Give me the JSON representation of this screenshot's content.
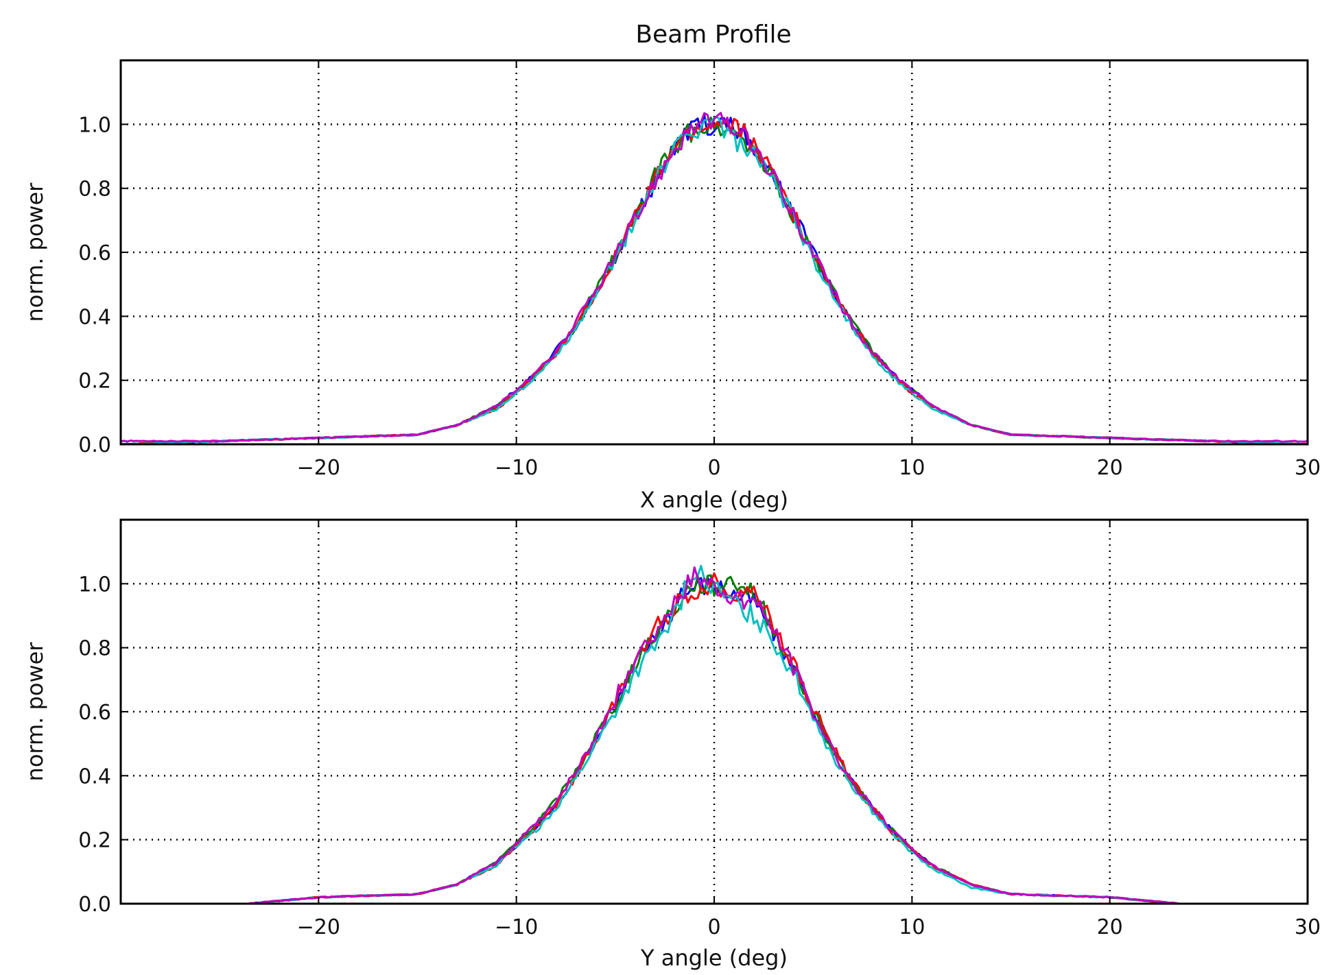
{
  "figure": {
    "title": "Beam Profile",
    "series_colors": [
      "#0000ff",
      "#008000",
      "#ff0000",
      "#00bfbf",
      "#bf00bf"
    ]
  },
  "chart_data": [
    {
      "type": "line",
      "title": "Beam Profile",
      "xlabel": "X angle (deg)",
      "ylabel": "norm. power",
      "xlim": [
        -30,
        30
      ],
      "ylim": [
        0,
        1.2
      ],
      "xticks": [
        -20,
        -10,
        0,
        10,
        20,
        30
      ],
      "xtick_labels": [
        "−20",
        "−10",
        "0",
        "10",
        "20",
        "30"
      ],
      "yticks": [
        0.0,
        0.2,
        0.4,
        0.6,
        0.8,
        1.0
      ],
      "ytick_labels": [
        "0.0",
        "0.2",
        "0.4",
        "0.6",
        "0.8",
        "1.0"
      ],
      "grid": true,
      "x": [
        -30,
        -25,
        -20,
        -15,
        -13,
        -11,
        -10,
        -9,
        -8,
        -7,
        -6,
        -5,
        -4,
        -3,
        -2,
        -1,
        0,
        1,
        2,
        3,
        4,
        5,
        6,
        7,
        8,
        9,
        10,
        11,
        13,
        15,
        20,
        25,
        30
      ],
      "series": [
        {
          "color": "#0000ff",
          "values": [
            0.0,
            0.01,
            0.02,
            0.03,
            0.06,
            0.12,
            0.17,
            0.22,
            0.29,
            0.37,
            0.47,
            0.58,
            0.71,
            0.82,
            0.92,
            1.0,
            1.0,
            0.99,
            0.92,
            0.83,
            0.72,
            0.6,
            0.48,
            0.37,
            0.29,
            0.22,
            0.17,
            0.12,
            0.06,
            0.03,
            0.02,
            0.01,
            0.0
          ]
        },
        {
          "color": "#008000",
          "values": [
            0.0,
            0.01,
            0.02,
            0.03,
            0.06,
            0.12,
            0.16,
            0.22,
            0.29,
            0.37,
            0.48,
            0.59,
            0.7,
            0.84,
            0.92,
            0.99,
            1.0,
            0.98,
            0.93,
            0.83,
            0.71,
            0.59,
            0.48,
            0.38,
            0.29,
            0.22,
            0.17,
            0.12,
            0.06,
            0.03,
            0.02,
            0.01,
            0.0
          ]
        },
        {
          "color": "#ff0000",
          "values": [
            0.0,
            0.01,
            0.02,
            0.03,
            0.06,
            0.11,
            0.16,
            0.22,
            0.28,
            0.37,
            0.47,
            0.59,
            0.71,
            0.82,
            0.93,
            0.98,
            1.0,
            1.0,
            0.94,
            0.84,
            0.72,
            0.6,
            0.48,
            0.37,
            0.29,
            0.22,
            0.16,
            0.12,
            0.06,
            0.03,
            0.02,
            0.01,
            0.0
          ]
        },
        {
          "color": "#00bfbf",
          "values": [
            0.0,
            0.01,
            0.02,
            0.03,
            0.06,
            0.11,
            0.16,
            0.21,
            0.28,
            0.36,
            0.46,
            0.58,
            0.7,
            0.83,
            0.92,
            0.98,
            1.02,
            0.95,
            0.9,
            0.82,
            0.71,
            0.58,
            0.47,
            0.36,
            0.28,
            0.21,
            0.16,
            0.11,
            0.06,
            0.03,
            0.02,
            0.01,
            0.0
          ]
        },
        {
          "color": "#bf00bf",
          "values": [
            0.01,
            0.01,
            0.02,
            0.03,
            0.06,
            0.12,
            0.17,
            0.22,
            0.29,
            0.38,
            0.48,
            0.59,
            0.7,
            0.82,
            0.93,
            1.0,
            1.01,
            0.99,
            0.93,
            0.83,
            0.72,
            0.6,
            0.48,
            0.37,
            0.29,
            0.22,
            0.17,
            0.12,
            0.06,
            0.03,
            0.02,
            0.01,
            0.01
          ]
        }
      ]
    },
    {
      "type": "line",
      "xlabel": "Y angle (deg)",
      "ylabel": "norm. power",
      "xlim": [
        -30,
        30
      ],
      "ylim": [
        0,
        1.2
      ],
      "xticks": [
        -20,
        -10,
        0,
        10,
        20,
        30
      ],
      "xtick_labels": [
        "−20",
        "−10",
        "0",
        "10",
        "20",
        "30"
      ],
      "yticks": [
        0.0,
        0.2,
        0.4,
        0.6,
        0.8,
        1.0
      ],
      "ytick_labels": [
        "0.0",
        "0.2",
        "0.4",
        "0.6",
        "0.8",
        "1.0"
      ],
      "grid": true,
      "x": [
        -23.5,
        -20,
        -15,
        -13,
        -11,
        -10,
        -9,
        -8,
        -7,
        -6,
        -5,
        -4,
        -3,
        -2,
        -1,
        0,
        1,
        2,
        3,
        4,
        5,
        6,
        7,
        8,
        9,
        10,
        11,
        13,
        15,
        20,
        23.5
      ],
      "series": [
        {
          "color": "#0000ff",
          "values": [
            0.0,
            0.02,
            0.03,
            0.06,
            0.13,
            0.18,
            0.24,
            0.31,
            0.4,
            0.51,
            0.62,
            0.75,
            0.84,
            0.93,
            1.0,
            1.0,
            0.97,
            0.95,
            0.85,
            0.73,
            0.61,
            0.48,
            0.38,
            0.3,
            0.23,
            0.17,
            0.12,
            0.06,
            0.03,
            0.02,
            0.0
          ]
        },
        {
          "color": "#008000",
          "values": [
            0.0,
            0.02,
            0.03,
            0.06,
            0.13,
            0.19,
            0.25,
            0.32,
            0.41,
            0.52,
            0.62,
            0.75,
            0.85,
            0.92,
            1.0,
            0.99,
            1.01,
            0.97,
            0.86,
            0.74,
            0.6,
            0.48,
            0.38,
            0.3,
            0.23,
            0.17,
            0.12,
            0.06,
            0.03,
            0.02,
            0.0
          ]
        },
        {
          "color": "#ff0000",
          "values": [
            0.0,
            0.02,
            0.03,
            0.06,
            0.12,
            0.18,
            0.24,
            0.31,
            0.4,
            0.51,
            0.63,
            0.76,
            0.86,
            0.93,
            0.98,
            1.0,
            0.98,
            0.98,
            0.87,
            0.75,
            0.61,
            0.49,
            0.38,
            0.3,
            0.22,
            0.17,
            0.12,
            0.06,
            0.03,
            0.02,
            0.0
          ]
        },
        {
          "color": "#00bfbf",
          "values": [
            0.0,
            0.02,
            0.03,
            0.06,
            0.12,
            0.18,
            0.23,
            0.3,
            0.39,
            0.5,
            0.6,
            0.72,
            0.8,
            0.9,
            1.05,
            0.98,
            0.94,
            0.9,
            0.82,
            0.72,
            0.59,
            0.46,
            0.37,
            0.29,
            0.22,
            0.16,
            0.11,
            0.05,
            0.03,
            0.02,
            0.0
          ]
        },
        {
          "color": "#bf00bf",
          "values": [
            0.0,
            0.02,
            0.03,
            0.06,
            0.13,
            0.19,
            0.25,
            0.32,
            0.41,
            0.52,
            0.64,
            0.77,
            0.85,
            0.94,
            1.02,
            0.99,
            0.96,
            0.95,
            0.86,
            0.74,
            0.6,
            0.48,
            0.38,
            0.3,
            0.23,
            0.17,
            0.12,
            0.06,
            0.03,
            0.02,
            0.0
          ]
        }
      ]
    }
  ]
}
